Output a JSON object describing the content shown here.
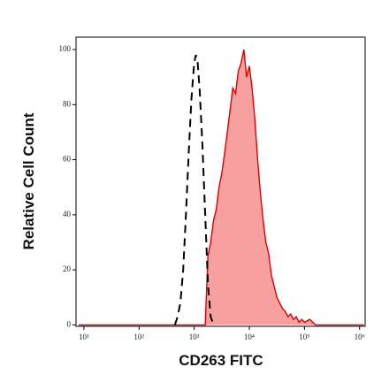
{
  "chart_data": {
    "type": "histogram-overlay",
    "xlabel": "CD263 FITC",
    "ylabel": "Relative Cell Count",
    "xscale": "log",
    "xlim": [
      7.2,
      1260000
    ],
    "ylim": [
      -0.5,
      104.5
    ],
    "xticks": [
      {
        "value": 10,
        "label": "10¹"
      },
      {
        "value": 100,
        "label": "10²"
      },
      {
        "value": 1000,
        "label": "10³"
      },
      {
        "value": 10000,
        "label": "10⁴"
      },
      {
        "value": 100000,
        "label": "10⁵"
      },
      {
        "value": 1000000,
        "label": "10⁶"
      }
    ],
    "yticks": [
      0,
      20,
      40,
      60,
      80,
      100
    ],
    "series": [
      {
        "color": "#000000",
        "style": "dashed",
        "filled": false,
        "x": [
          447,
          501,
          562,
          631,
          708,
          794,
          891,
          1000,
          1072,
          1148,
          1259,
          1413,
          1585,
          1778,
          1995,
          2239
        ],
        "values": [
          0,
          3,
          8,
          20,
          40,
          62,
          82,
          95,
          98,
          96,
          85,
          65,
          40,
          15,
          3,
          0
        ]
      },
      {
        "color": "#e00000",
        "fill": "#f7a0a0",
        "style": "solid",
        "filled": true,
        "x": [
          8,
          1585,
          1778,
          1995,
          2239,
          2512,
          2818,
          3162,
          3548,
          3981,
          4467,
          5012,
          5623,
          6310,
          7079,
          7943,
          8913,
          10000,
          11220,
          12589,
          14125,
          15849,
          17783,
          19953,
          22387,
          25119,
          28184,
          31623,
          35481,
          39811,
          44668,
          50119,
          56234,
          63096,
          70795,
          79433,
          89125,
          100000,
          125893,
          158489,
          251189,
          1200000
        ],
        "values": [
          0,
          0,
          25,
          30,
          38,
          42,
          50,
          55,
          62,
          70,
          78,
          86,
          84,
          92,
          95,
          100,
          90,
          94,
          86,
          75,
          60,
          48,
          38,
          30,
          26,
          18,
          14,
          10,
          8,
          6,
          5,
          3,
          4,
          2,
          3,
          1,
          2,
          1,
          2,
          0,
          0,
          0
        ]
      }
    ]
  }
}
